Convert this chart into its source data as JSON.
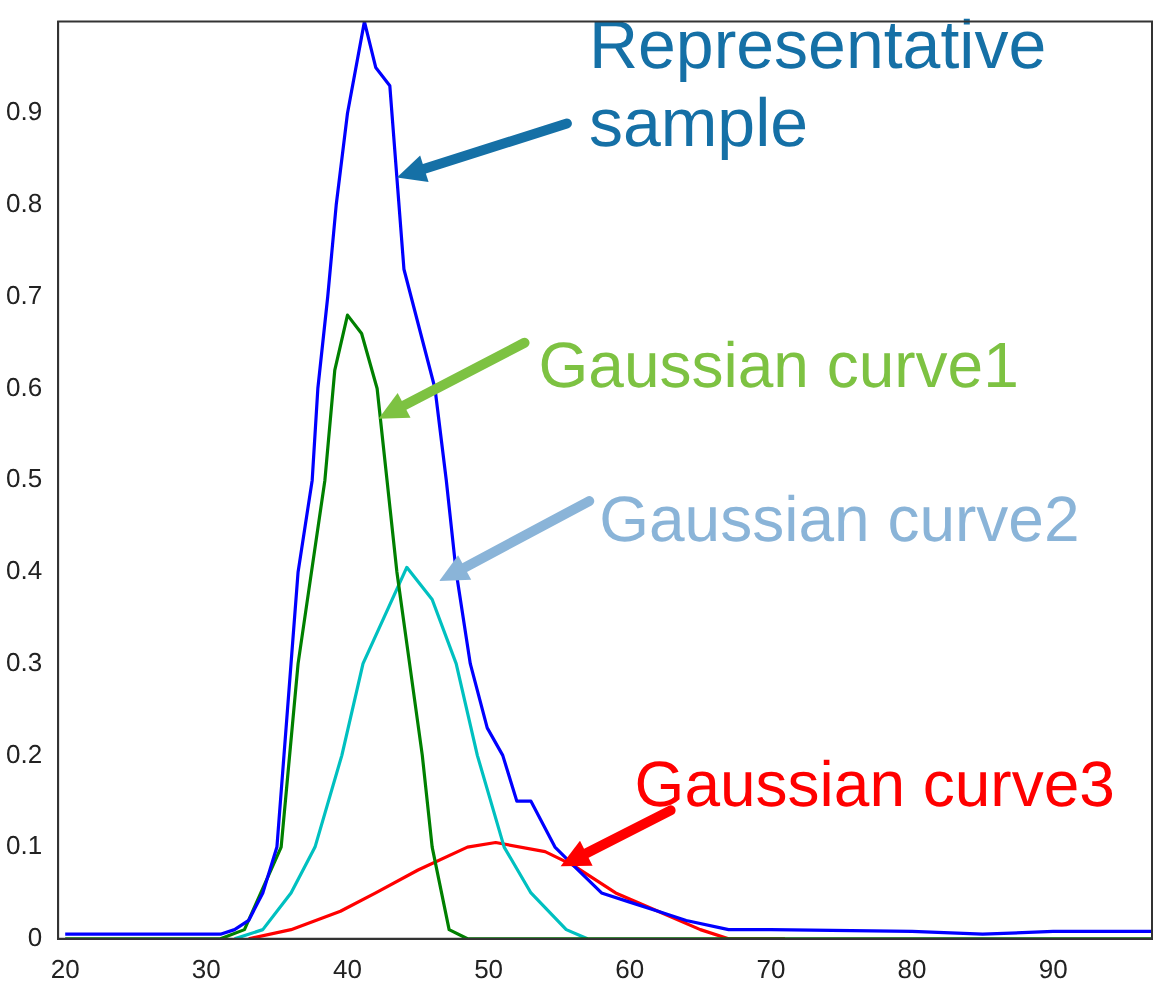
{
  "chart_data": {
    "type": "line",
    "xlim": [
      19.5,
      97
    ],
    "ylim": [
      0,
      1
    ],
    "xticks": [
      20,
      30,
      40,
      50,
      60,
      70,
      80,
      90
    ],
    "yticks": [
      0,
      0.1,
      0.2,
      0.3,
      0.4,
      0.5,
      0.6,
      0.7,
      0.8,
      0.9
    ],
    "grid": false,
    "legend": false,
    "marker": "none",
    "line_style": "solid",
    "series": [
      {
        "color": "#0000ff",
        "x": [
          20,
          31,
          32,
          33,
          34,
          35,
          35.5,
          36,
          36.5,
          37.5,
          37.9,
          38.6,
          39.2,
          40,
          41.2,
          42,
          43,
          44,
          46.2,
          47,
          47.7,
          48.7,
          49.9,
          51,
          52,
          53,
          54.7,
          56,
          58,
          60,
          62,
          64,
          67,
          70,
          80,
          85,
          90,
          97
        ],
        "values": [
          0.005,
          0.005,
          0.01,
          0.02,
          0.05,
          0.1,
          0.2,
          0.3,
          0.4,
          0.5,
          0.6,
          0.7,
          0.8,
          0.9,
          1.0,
          0.95,
          0.93,
          0.73,
          0.6,
          0.5,
          0.4,
          0.3,
          0.23,
          0.2,
          0.15,
          0.15,
          0.1,
          0.08,
          0.05,
          0.04,
          0.03,
          0.02,
          0.01,
          0.01,
          0.008,
          0.005,
          0.008,
          0.008
        ]
      },
      {
        "color": "#008000",
        "x": [
          20,
          31,
          32.7,
          35.3,
          36.5,
          38.4,
          39.1,
          40,
          41,
          42.1,
          42.8,
          43.5,
          44.4,
          45.3,
          46,
          47.2,
          48.5,
          97
        ],
        "values": [
          0,
          0,
          0.01,
          0.1,
          0.3,
          0.5,
          0.62,
          0.68,
          0.66,
          0.6,
          0.5,
          0.4,
          0.3,
          0.2,
          0.1,
          0.01,
          0,
          0
        ]
      },
      {
        "color": "#00c0c0",
        "x": [
          32,
          34,
          36,
          37.7,
          39.6,
          41.1,
          44.2,
          46,
          47.7,
          49.2,
          51.1,
          53,
          55.5,
          57
        ],
        "values": [
          0,
          0.01,
          0.05,
          0.1,
          0.2,
          0.3,
          0.405,
          0.37,
          0.3,
          0.2,
          0.1,
          0.05,
          0.01,
          0
        ]
      },
      {
        "color": "#ff0000",
        "x": [
          33,
          36,
          39.5,
          42,
          45,
          48.5,
          50.5,
          54,
          56,
          59,
          62,
          65,
          67,
          71
        ],
        "values": [
          0,
          0.01,
          0.03,
          0.05,
          0.075,
          0.1,
          0.105,
          0.095,
          0.08,
          0.05,
          0.03,
          0.01,
          0,
          0
        ]
      }
    ],
    "annotations": [
      {
        "text": "Representative sample",
        "x": 43.5,
        "y": 0.83
      },
      {
        "text": "Gaussian curve1",
        "x": 42.2,
        "y": 0.567
      },
      {
        "text": "Gaussian curve2",
        "x": 46.5,
        "y": 0.39
      },
      {
        "text": "Gaussian curve3",
        "x": 55.1,
        "y": 0.079
      }
    ]
  }
}
